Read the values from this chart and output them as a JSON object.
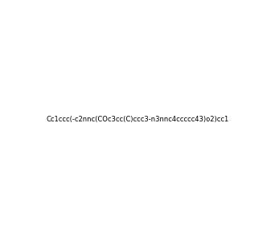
{
  "smiles": "Cc1ccc(-c2nnc(COc3cc(C)ccc3-n3nnc4ccccc43)o2)cc1",
  "title": "",
  "bg_color": "#ffffff",
  "fig_width": 3.42,
  "fig_height": 2.96,
  "dpi": 100
}
